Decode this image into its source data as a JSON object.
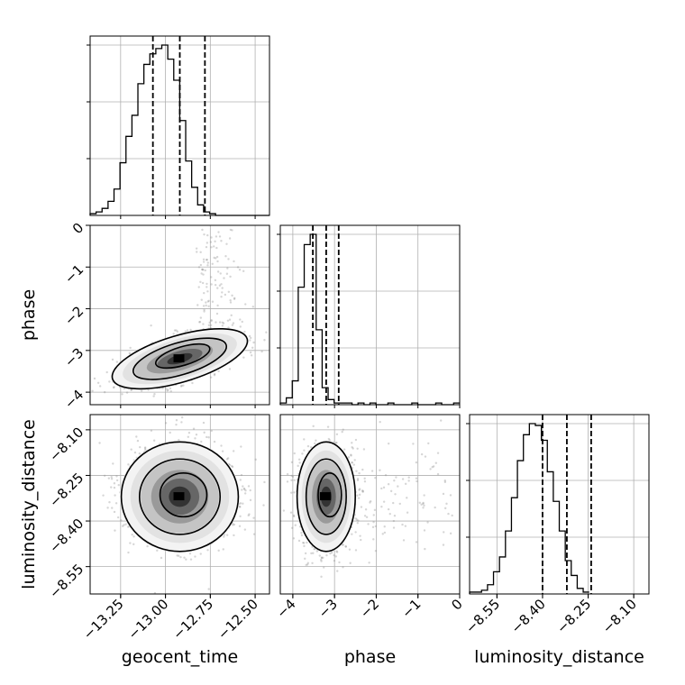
{
  "chart_data": {
    "type": "corner",
    "parameters": [
      "geocent_time",
      "phase",
      "luminosity_distance"
    ],
    "grid": true,
    "quantile_lines": "dashed",
    "ranges": {
      "geocent_time": [
        -13.42,
        -12.42
      ],
      "phase": [
        -4.3,
        0.0
      ],
      "luminosity_distance": [
        -8.64,
        -8.05
      ]
    },
    "ticks": {
      "geocent_time": {
        "values": [
          -13.25,
          -13.0,
          -12.75,
          -12.5
        ],
        "labels": [
          "−13.25",
          "−13.00",
          "−12.75",
          "−12.50"
        ]
      },
      "phase": {
        "values": [
          -4,
          -3,
          -2,
          -1,
          0
        ],
        "labels": [
          "−4",
          "−3",
          "−2",
          "−1",
          "0"
        ]
      },
      "luminosity_distance": {
        "values": [
          -8.55,
          -8.4,
          -8.25,
          -8.1
        ],
        "labels": [
          "−8.55",
          "−8.40",
          "−8.25",
          "−8.10"
        ]
      }
    },
    "histograms": {
      "geocent_time": {
        "bin_start": -13.42,
        "bin_width": 0.0333,
        "counts": [
          1,
          2,
          4,
          8,
          15,
          30,
          45,
          57,
          75,
          86,
          92,
          95,
          97,
          89,
          77,
          54,
          31,
          16,
          6,
          2,
          1,
          0,
          0,
          0,
          0,
          0,
          0,
          0,
          0,
          0
        ],
        "quantiles": [
          -13.07,
          -12.92,
          -12.78
        ]
      },
      "phase": {
        "bin_start": -4.3,
        "bin_width": 0.1433,
        "counts": [
          1,
          4,
          14,
          69,
          94,
          100,
          44,
          10,
          3,
          1,
          1,
          1,
          0,
          1,
          0,
          1,
          0,
          0,
          1,
          0,
          0,
          0,
          1,
          0,
          0,
          0,
          1,
          0,
          0,
          1
        ],
        "quantiles": [
          -3.52,
          -3.2,
          -2.9
        ]
      },
      "luminosity_distance": {
        "bin_start": -8.64,
        "bin_width": 0.01967,
        "counts": [
          1,
          1,
          2,
          5,
          12,
          20,
          34,
          52,
          72,
          86,
          92,
          91,
          83,
          66,
          50,
          34,
          18,
          10,
          3,
          1
        ],
        "quantiles": [
          -8.4,
          -8.32,
          -8.24
        ]
      }
    },
    "correlations": {
      "geocent_time|phase": 0.6,
      "geocent_time|luminosity_distance": 0.0,
      "phase|luminosity_distance": 0.0
    }
  }
}
